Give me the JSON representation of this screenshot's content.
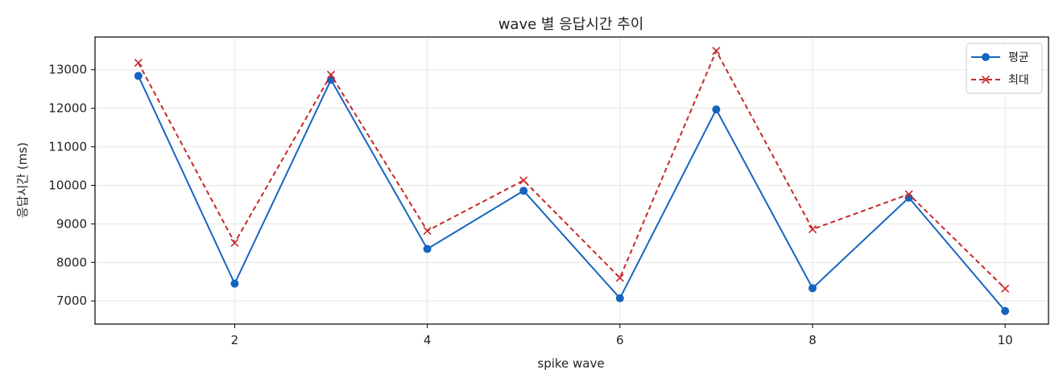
{
  "chart_data": {
    "type": "line",
    "title": "wave 별 응답시간 추이",
    "xlabel": "spike wave",
    "ylabel": "응답시간 (ms)",
    "x": [
      1,
      2,
      3,
      4,
      5,
      6,
      7,
      8,
      9,
      10
    ],
    "xlim": [
      0.55,
      10.45
    ],
    "ylim": [
      6400,
      13850
    ],
    "xticks": [
      2,
      4,
      6,
      8,
      10
    ],
    "yticks": [
      7000,
      8000,
      9000,
      10000,
      11000,
      12000,
      13000
    ],
    "grid": true,
    "legend_position": "top-right",
    "series": [
      {
        "name": "평균",
        "values": [
          12840,
          7450,
          12740,
          8350,
          9860,
          7070,
          11970,
          7330,
          9680,
          6740
        ],
        "color": "#1565c0",
        "line_style": "solid",
        "marker": "circle"
      },
      {
        "name": "최대",
        "values": [
          13180,
          8510,
          12870,
          8820,
          10130,
          7600,
          13490,
          8860,
          9770,
          7320
        ],
        "color": "#c62828",
        "line_style": "dashed",
        "marker": "x"
      }
    ]
  }
}
